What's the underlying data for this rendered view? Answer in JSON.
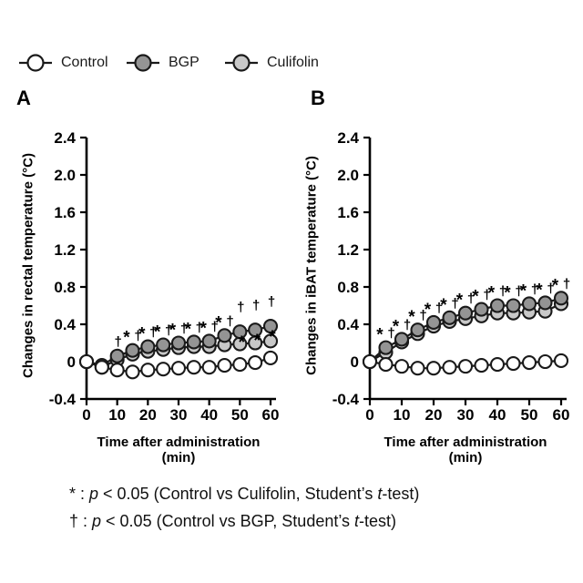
{
  "legend": {
    "items": [
      {
        "label": "Control",
        "fill": "#ffffff"
      },
      {
        "label": "BGP",
        "fill": "#949494"
      },
      {
        "label": "Culifolin",
        "fill": "#c8c8c8"
      }
    ]
  },
  "symbols": {
    "star": "*",
    "dagger": "†"
  },
  "chart_data": [
    {
      "type": "line",
      "panel_label": "A",
      "ylabel": "Changes in rectal temperature (°C)",
      "xlabel": "Time after administration (min)",
      "xlim": [
        0,
        60
      ],
      "ylim": [
        -0.4,
        2.4
      ],
      "x": [
        0,
        5,
        10,
        15,
        20,
        25,
        30,
        35,
        40,
        45,
        50,
        55,
        60
      ],
      "xticks": [
        0,
        10,
        20,
        30,
        40,
        50,
        60
      ],
      "xtick_labels": [
        "0",
        "10",
        "20",
        "30",
        "40",
        "50",
        "60"
      ],
      "yticks": [
        2.4,
        2.0,
        1.6,
        1.2,
        0.8,
        0.4,
        0,
        -0.4
      ],
      "ytick_labels": [
        "2.4",
        "2.0",
        "1.6",
        "1.2",
        "0.8",
        "0.4",
        "0",
        "-0.4"
      ],
      "series": [
        {
          "name": "Control",
          "fill": "#ffffff",
          "values": [
            0,
            -0.06,
            -0.09,
            -0.11,
            -0.09,
            -0.08,
            -0.07,
            -0.06,
            -0.06,
            -0.04,
            -0.03,
            -0.01,
            0.04
          ]
        },
        {
          "name": "BGP",
          "fill": "#949494",
          "values": [
            0,
            -0.04,
            0.06,
            0.12,
            0.16,
            0.18,
            0.2,
            0.21,
            0.22,
            0.28,
            0.32,
            0.34,
            0.38
          ]
        },
        {
          "name": "Culifolin",
          "fill": "#c8c8c8",
          "values": [
            0,
            -0.06,
            0.02,
            0.08,
            0.11,
            0.13,
            0.15,
            0.16,
            0.16,
            0.18,
            0.19,
            0.2,
            0.22
          ]
        }
      ],
      "annotations": [
        {
          "x": 10,
          "dagger": true
        },
        {
          "x": 15,
          "star": true,
          "dagger": true
        },
        {
          "x": 20,
          "star": true,
          "dagger": true
        },
        {
          "x": 25,
          "star": true,
          "dagger": true
        },
        {
          "x": 30,
          "star": true,
          "dagger": true
        },
        {
          "x": 35,
          "star": true,
          "dagger": true
        },
        {
          "x": 40,
          "star": true,
          "dagger": true
        },
        {
          "x": 45,
          "star": true,
          "dagger": true
        },
        {
          "x": 50,
          "dagger": true,
          "star_below": true
        },
        {
          "x": 55,
          "dagger": true,
          "star_below": true
        },
        {
          "x": 60,
          "dagger": true,
          "star_below": true
        }
      ]
    },
    {
      "type": "line",
      "panel_label": "B",
      "ylabel": "Changes in iBAT temperature (°C)",
      "xlabel": "Time after administration (min)",
      "xlim": [
        0,
        60
      ],
      "ylim": [
        -0.4,
        2.4
      ],
      "x": [
        0,
        5,
        10,
        15,
        20,
        25,
        30,
        35,
        40,
        45,
        50,
        55,
        60
      ],
      "xticks": [
        0,
        10,
        20,
        30,
        40,
        50,
        60
      ],
      "xtick_labels": [
        "0",
        "10",
        "20",
        "30",
        "40",
        "50",
        "60"
      ],
      "yticks": [
        2.4,
        2.0,
        1.6,
        1.2,
        0.8,
        0.4,
        0,
        -0.4
      ],
      "ytick_labels": [
        "2.4",
        "2.0",
        "1.6",
        "1.2",
        "0.8",
        "0.4",
        "0",
        "-0.4"
      ],
      "series": [
        {
          "name": "Control",
          "fill": "#ffffff",
          "values": [
            0,
            -0.03,
            -0.05,
            -0.07,
            -0.07,
            -0.06,
            -0.05,
            -0.04,
            -0.03,
            -0.02,
            -0.01,
            0.0,
            0.01
          ]
        },
        {
          "name": "BGP",
          "fill": "#949494",
          "values": [
            0,
            0.15,
            0.24,
            0.34,
            0.42,
            0.47,
            0.52,
            0.56,
            0.6,
            0.6,
            0.62,
            0.63,
            0.68
          ]
        },
        {
          "name": "Culifolin",
          "fill": "#c8c8c8",
          "values": [
            0,
            0.1,
            0.21,
            0.3,
            0.38,
            0.43,
            0.46,
            0.49,
            0.52,
            0.52,
            0.53,
            0.54,
            0.62
          ]
        }
      ],
      "annotations": [
        {
          "x": 5,
          "star": true,
          "dagger": true
        },
        {
          "x": 10,
          "star": true,
          "dagger": true
        },
        {
          "x": 15,
          "star": true,
          "dagger": true
        },
        {
          "x": 20,
          "star": true,
          "dagger": true
        },
        {
          "x": 25,
          "star": true,
          "dagger": true
        },
        {
          "x": 30,
          "star": true,
          "dagger": true
        },
        {
          "x": 35,
          "star": true,
          "dagger": true
        },
        {
          "x": 40,
          "star": true,
          "dagger": true
        },
        {
          "x": 45,
          "star": true,
          "dagger": true
        },
        {
          "x": 50,
          "star": true,
          "dagger": true
        },
        {
          "x": 55,
          "star": true,
          "dagger": true
        },
        {
          "x": 60,
          "star": true,
          "dagger": true
        }
      ]
    }
  ],
  "footnotes": [
    {
      "segments": [
        {
          "t": "* : "
        },
        {
          "t": "p",
          "i": true
        },
        {
          "t": " < 0.05 (Control vs Culifolin, Student’s "
        },
        {
          "t": "t",
          "i": true
        },
        {
          "t": "-test)"
        }
      ]
    },
    {
      "segments": [
        {
          "t": "† : "
        },
        {
          "t": "p",
          "i": true
        },
        {
          "t": " < 0.05 (Control vs BGP, Student’s "
        },
        {
          "t": "t",
          "i": true
        },
        {
          "t": "-test)"
        }
      ]
    }
  ]
}
